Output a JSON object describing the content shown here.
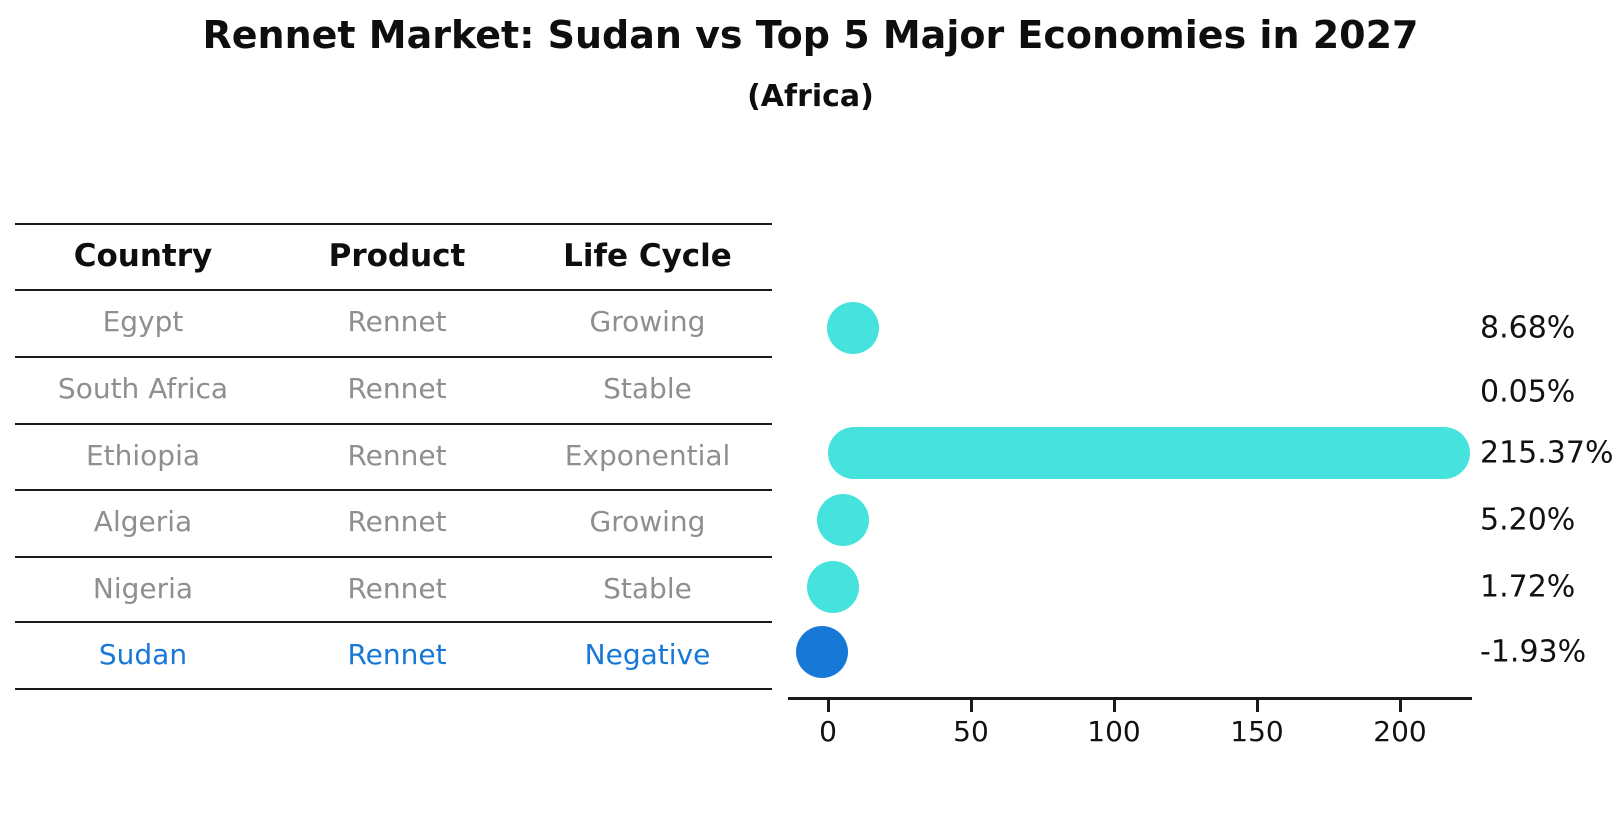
{
  "title": "Rennet Market: Sudan vs Top 5 Major Economies in 2027",
  "subtitle": "(Africa)",
  "table": {
    "headers": [
      "Country",
      "Product",
      "Life Cycle"
    ],
    "rows": [
      {
        "country": "Egypt",
        "product": "Rennet",
        "life_cycle": "Growing",
        "highlight": false
      },
      {
        "country": "South Africa",
        "product": "Rennet",
        "life_cycle": "Stable",
        "highlight": false
      },
      {
        "country": "Ethiopia",
        "product": "Rennet",
        "life_cycle": "Exponential",
        "highlight": false
      },
      {
        "country": "Algeria",
        "product": "Rennet",
        "life_cycle": "Growing",
        "highlight": false
      },
      {
        "country": "Nigeria",
        "product": "Rennet",
        "life_cycle": "Stable",
        "highlight": false
      },
      {
        "country": "Sudan",
        "product": "Rennet",
        "life_cycle": "Negative",
        "highlight": true
      }
    ]
  },
  "chart_data": {
    "type": "bar",
    "orientation": "horizontal",
    "title": "Rennet Market: Sudan vs Top 5 Major Economies in 2027",
    "subtitle": "(Africa)",
    "xlabel": "",
    "ylabel": "",
    "categories": [
      "Egypt",
      "South Africa",
      "Ethiopia",
      "Algeria",
      "Nigeria",
      "Sudan"
    ],
    "values": [
      8.68,
      0.05,
      215.37,
      5.2,
      1.72,
      -1.93
    ],
    "value_labels": [
      "8.68%",
      "0.05%",
      "215.37%",
      "5.20%",
      "1.72%",
      "-1.93%"
    ],
    "xticks": [
      0,
      50,
      100,
      150,
      200
    ],
    "xlim": [
      -14,
      227
    ],
    "grid": false,
    "legend": "none",
    "bar_color": "#46e3de",
    "highlight_color": "#1878d8",
    "highlight_index": 5,
    "highlight_text_color": "#1878d8",
    "row_text_color": "#8f8f8f"
  }
}
